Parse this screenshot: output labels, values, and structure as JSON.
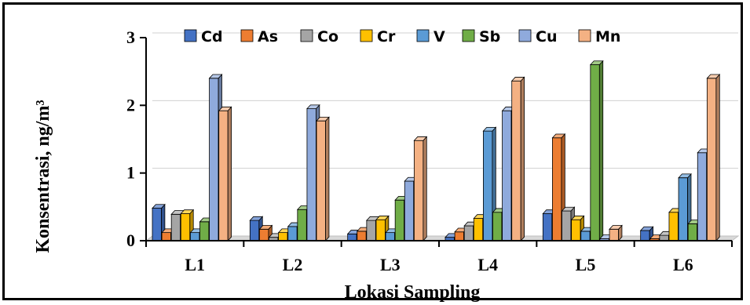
{
  "chart_data": {
    "type": "bar",
    "title": "",
    "xlabel": "Lokasi Sampling",
    "ylabel": "Konsentrasi, ng/m³",
    "ylim": [
      0,
      3
    ],
    "yticks": [
      "0",
      "1",
      "2",
      "3"
    ],
    "grid": true,
    "legend_position": "top",
    "categories": [
      "L1",
      "L2",
      "L3",
      "L4",
      "L5",
      "L6"
    ],
    "series": [
      {
        "name": "Cd",
        "color": "#4472C4",
        "values": [
          0.48,
          0.3,
          0.1,
          0.05,
          0.4,
          0.15
        ]
      },
      {
        "name": "As",
        "color": "#ED7D31",
        "values": [
          0.12,
          0.17,
          0.14,
          0.13,
          1.52,
          0.03
        ]
      },
      {
        "name": "Co",
        "color": "#A5A5A5",
        "values": [
          0.39,
          0.05,
          0.3,
          0.22,
          0.44,
          0.08
        ]
      },
      {
        "name": "Cr",
        "color": "#FFC000",
        "values": [
          0.4,
          0.12,
          0.31,
          0.33,
          0.31,
          0.42
        ]
      },
      {
        "name": "V",
        "color": "#5B9BD5",
        "values": [
          0.12,
          0.21,
          0.12,
          1.62,
          0.14,
          0.93
        ]
      },
      {
        "name": "Sb",
        "color": "#70AD47",
        "values": [
          0.28,
          0.46,
          0.6,
          0.42,
          2.6,
          0.25
        ]
      },
      {
        "name": "Cu",
        "color": "#8FAADC",
        "values": [
          2.4,
          1.95,
          0.88,
          1.92,
          0.03,
          1.3
        ]
      },
      {
        "name": "Mn",
        "color": "#F4B183",
        "values": [
          1.92,
          1.77,
          1.48,
          2.36,
          0.17,
          2.4
        ]
      }
    ]
  }
}
